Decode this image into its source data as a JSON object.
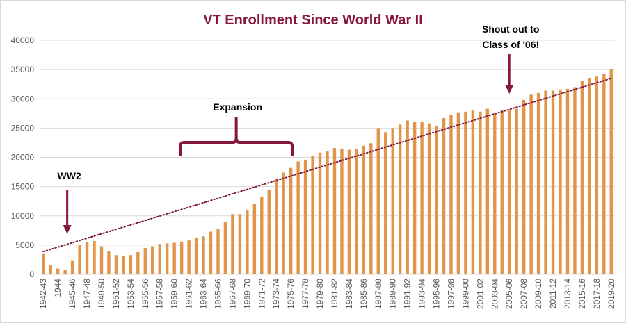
{
  "colors": {
    "bar": "#e0954a",
    "title": "#86153f",
    "annotation": "#86153f",
    "trendline": "#7a1440",
    "grid": "#d9d9d9",
    "axis_text": "#595959"
  },
  "chart_data": {
    "type": "bar",
    "title": "VT Enrollment Since World War II",
    "xlabel": "",
    "ylabel": "",
    "ylim": [
      0,
      40000
    ],
    "yticks": [
      0,
      5000,
      10000,
      15000,
      20000,
      25000,
      30000,
      35000,
      40000
    ],
    "ytick_labels": [
      "0",
      "5000",
      "10000",
      "15000",
      "20000",
      "25000",
      "30000",
      "35000",
      "40000"
    ],
    "grid": true,
    "legend": "none",
    "trendline": {
      "type": "linear",
      "style": "dotted",
      "from": 3900,
      "to": 33500
    },
    "categories": [
      "1942-43",
      "1943-44",
      "1944",
      "1944-45",
      "1945-46",
      "1946-47",
      "1947-48",
      "1948-49",
      "1949-50",
      "1950-51",
      "1951-52",
      "1952-53",
      "1953-54",
      "1954-55",
      "1955-56",
      "1956-57",
      "1957-58",
      "1958-59",
      "1959-60",
      "1960-61",
      "1961-62",
      "1962-63",
      "1963-64",
      "1964-65",
      "1965-66",
      "1966-67",
      "1967-68",
      "1968-69",
      "1969-70",
      "1970-71",
      "1971-72",
      "1972-73",
      "1973-74",
      "1974-75",
      "1975-76",
      "1976-77",
      "1977-78",
      "1978-79",
      "1979-80",
      "1980-81",
      "1981-82",
      "1982-83",
      "1983-84",
      "1984-85",
      "1985-86",
      "1986-87",
      "1987-88",
      "1988-89",
      "1989-90",
      "1990-91",
      "1991-92",
      "1992-93",
      "1993-94",
      "1994-95",
      "1995-96",
      "1996-97",
      "1997-98",
      "1998-99",
      "1999-00",
      "2000-01",
      "2001-02",
      "2002-03",
      "2003-04",
      "2004-05",
      "2005-06",
      "2006-07",
      "2007-08",
      "2008-09",
      "2009-10",
      "2010-11",
      "2011-12",
      "2012-13",
      "2013-14",
      "2014-15",
      "2015-16",
      "2016-17",
      "2017-18",
      "2018-19",
      "2019-20"
    ],
    "tick_labels": [
      "1942-43",
      "1944",
      "1945-46",
      "1947-48",
      "1949-50",
      "1951-52",
      "1953-54",
      "1955-56",
      "1957-58",
      "1959-60",
      "1961-62",
      "1963-64",
      "1965-66",
      "1967-68",
      "1969-70",
      "1971-72",
      "1973-74",
      "1975-76",
      "1977-78",
      "1979-80",
      "1981-82",
      "1983-84",
      "1985-86",
      "1987-88",
      "1989-90",
      "1991-92",
      "1993-94",
      "1995-96",
      "1997-98",
      "1999-00",
      "2001-02",
      "2003-04",
      "2005-06",
      "2007-08",
      "2009-10",
      "2011-12",
      "2013-14",
      "2015-16",
      "2017-18",
      "2019-20"
    ],
    "values": [
      3600,
      1600,
      1000,
      800,
      2300,
      5000,
      5500,
      5700,
      4800,
      3900,
      3300,
      3200,
      3300,
      3800,
      4500,
      4800,
      5200,
      5300,
      5400,
      5600,
      5800,
      6300,
      6500,
      7300,
      7700,
      9000,
      10300,
      10300,
      11000,
      12000,
      13300,
      14400,
      16400,
      17400,
      18200,
      19300,
      19600,
      20200,
      20800,
      21000,
      21600,
      21500,
      21300,
      21400,
      22000,
      22400,
      25000,
      24300,
      25000,
      25600,
      26300,
      26000,
      26000,
      25800,
      25400,
      26700,
      27300,
      27700,
      27800,
      28000,
      27800,
      28300,
      27600,
      28000,
      28000,
      28300,
      29800,
      30700,
      31000,
      31400,
      31400,
      31600,
      31700,
      32000,
      33000,
      33500,
      33800,
      34300,
      35000
    ],
    "annotations": [
      {
        "text": "WW2",
        "target": "1944-45"
      },
      {
        "text": "Expansion",
        "span": [
          "1960-61",
          "1975-76"
        ]
      },
      {
        "lines": [
          "Shout out to",
          "Class of '06!"
        ],
        "target": "2005-06"
      }
    ]
  }
}
